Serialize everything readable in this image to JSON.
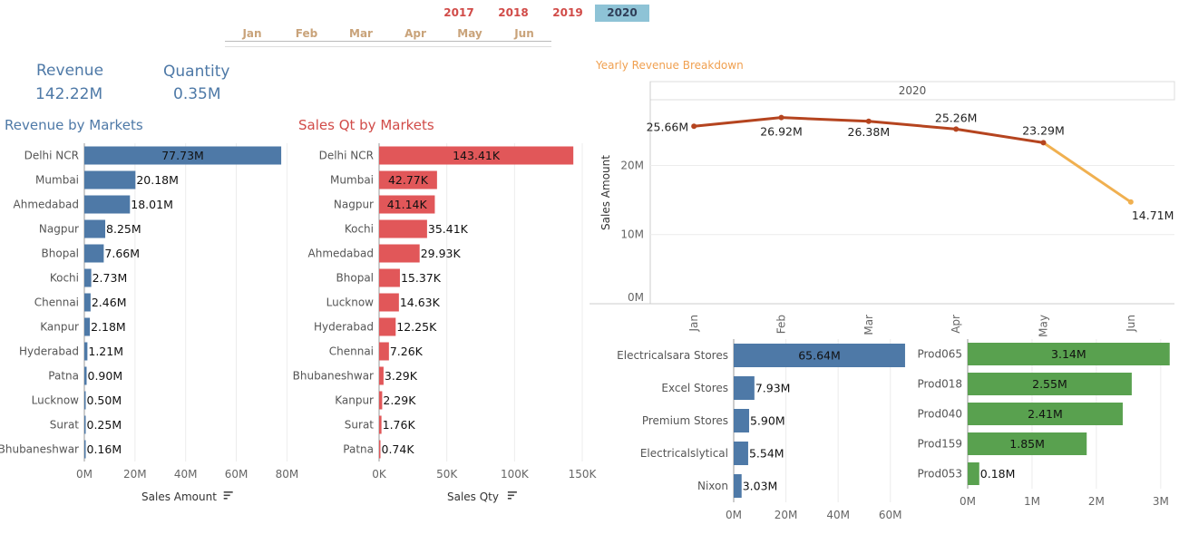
{
  "filters": {
    "years": [
      "2017",
      "2018",
      "2019",
      "2020"
    ],
    "selected_year": "2020",
    "months": [
      "Jan",
      "Feb",
      "Mar",
      "Apr",
      "May",
      "Jun"
    ]
  },
  "kpis": {
    "revenue_label": "Revenue",
    "revenue_value": "142.22M",
    "quantity_label": "Quantity",
    "quantity_value": "0.35M"
  },
  "colors": {
    "revenue_bar": "#4e79a7",
    "qty_bar": "#e15759",
    "product_bar": "#59a14f",
    "line": "#b5441f",
    "line_last": "#f0b050",
    "title_blue": "#4e79a7",
    "title_red": "#d14b48",
    "title_orange": "#f0a050"
  },
  "chart_data": [
    {
      "id": "revenue_by_markets",
      "type": "bar",
      "orientation": "horizontal",
      "title": "Revenue by Markets",
      "xlabel": "Sales Amount",
      "categories": [
        "Delhi NCR",
        "Mumbai",
        "Ahmedabad",
        "Nagpur",
        "Bhopal",
        "Kochi",
        "Chennai",
        "Kanpur",
        "Hyderabad",
        "Patna",
        "Lucknow",
        "Surat",
        "Bhubaneshwar"
      ],
      "values": [
        77.73,
        20.18,
        18.01,
        8.25,
        7.66,
        2.73,
        2.46,
        2.18,
        1.21,
        0.9,
        0.5,
        0.25,
        0.16
      ],
      "labels": [
        "77.73M",
        "20.18M",
        "18.01M",
        "8.25M",
        "7.66M",
        "2.73M",
        "2.46M",
        "2.18M",
        "1.21M",
        "0.90M",
        "0.50M",
        "0.25M",
        "0.16M"
      ],
      "ticks": [
        0,
        20,
        40,
        60,
        80
      ],
      "tick_labels": [
        "0M",
        "20M",
        "40M",
        "60M",
        "80M"
      ],
      "xlim": [
        0,
        82
      ]
    },
    {
      "id": "sales_qty_by_markets",
      "type": "bar",
      "orientation": "horizontal",
      "title": "Sales Qt by Markets",
      "xlabel": "Sales Qty",
      "categories": [
        "Delhi NCR",
        "Mumbai",
        "Nagpur",
        "Kochi",
        "Ahmedabad",
        "Bhopal",
        "Lucknow",
        "Hyderabad",
        "Chennai",
        "Bhubaneshwar",
        "Kanpur",
        "Surat",
        "Patna"
      ],
      "values": [
        143.41,
        42.77,
        41.14,
        35.41,
        29.93,
        15.37,
        14.63,
        12.25,
        7.26,
        3.29,
        2.29,
        1.76,
        0.74
      ],
      "labels": [
        "143.41K",
        "42.77K",
        "41.14K",
        "35.41K",
        "29.93K",
        "15.37K",
        "14.63K",
        "12.25K",
        "7.26K",
        "3.29K",
        "2.29K",
        "1.76K",
        "0.74K"
      ],
      "ticks": [
        0,
        50,
        100,
        150
      ],
      "tick_labels": [
        "0K",
        "50K",
        "100K",
        "150K"
      ],
      "xlim": [
        0,
        152
      ]
    },
    {
      "id": "yearly_revenue_breakdown",
      "type": "line",
      "title": "Yearly Revenue Breakdown",
      "panel_header": "2020",
      "ylabel": "Sales Amount",
      "x": [
        "Jan",
        "Feb",
        "Mar",
        "Apr",
        "May",
        "Jun"
      ],
      "values": [
        25.66,
        26.92,
        26.38,
        25.26,
        23.29,
        14.71
      ],
      "labels": [
        "25.66M",
        "26.92M",
        "26.38M",
        "25.26M",
        "23.29M",
        "14.71M"
      ],
      "ticks": [
        0,
        10,
        20
      ],
      "tick_labels": [
        "0M",
        "10M",
        "20M"
      ],
      "ylim": [
        0,
        29.5
      ]
    },
    {
      "id": "revenue_by_customers",
      "type": "bar",
      "orientation": "horizontal",
      "categories": [
        "Electricalsara Stores",
        "Excel Stores",
        "Premium Stores",
        "Electricalslytical",
        "Nixon"
      ],
      "values": [
        65.64,
        7.93,
        5.9,
        5.54,
        3.03
      ],
      "labels": [
        "65.64M",
        "7.93M",
        "5.90M",
        "5.54M",
        "3.03M"
      ],
      "ticks": [
        0,
        20,
        40,
        60
      ],
      "tick_labels": [
        "0M",
        "20M",
        "40M",
        "60M"
      ],
      "xlim": [
        0,
        66
      ]
    },
    {
      "id": "revenue_by_products",
      "type": "bar",
      "orientation": "horizontal",
      "categories": [
        "Prod065",
        "Prod018",
        "Prod040",
        "Prod159",
        "Prod053"
      ],
      "values": [
        3.14,
        2.55,
        2.41,
        1.85,
        0.18
      ],
      "labels": [
        "3.14M",
        "2.55M",
        "2.41M",
        "1.85M",
        "0.18M"
      ],
      "ticks": [
        0,
        1,
        2,
        3
      ],
      "tick_labels": [
        "0M",
        "1M",
        "2M",
        "3M"
      ],
      "xlim": [
        0,
        3.2
      ]
    }
  ]
}
